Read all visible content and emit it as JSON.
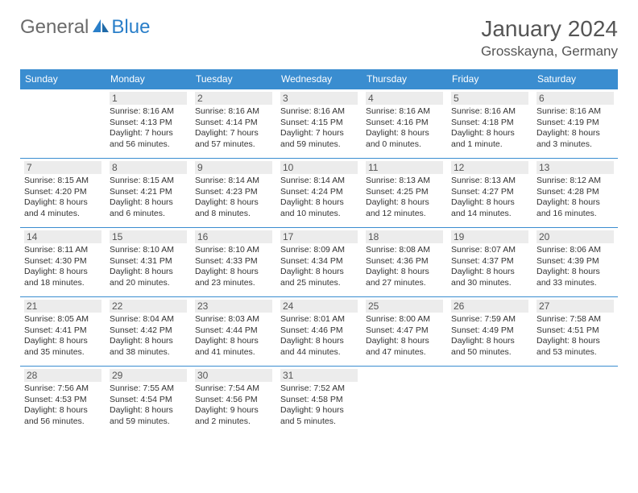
{
  "logo": {
    "general": "General",
    "blue": "Blue"
  },
  "title": "January 2024",
  "location": "Grosskayna, Germany",
  "colors": {
    "header_bg": "#3a8dd0",
    "header_fg": "#ffffff",
    "daynum_bg": "#ececec",
    "border": "#3a8dd0",
    "logo_gray": "#6b6b6b",
    "logo_blue": "#2a7fc9"
  },
  "day_headers": [
    "Sunday",
    "Monday",
    "Tuesday",
    "Wednesday",
    "Thursday",
    "Friday",
    "Saturday"
  ],
  "weeks": [
    [
      null,
      {
        "n": "1",
        "sr": "Sunrise: 8:16 AM",
        "ss": "Sunset: 4:13 PM",
        "d1": "Daylight: 7 hours",
        "d2": "and 56 minutes."
      },
      {
        "n": "2",
        "sr": "Sunrise: 8:16 AM",
        "ss": "Sunset: 4:14 PM",
        "d1": "Daylight: 7 hours",
        "d2": "and 57 minutes."
      },
      {
        "n": "3",
        "sr": "Sunrise: 8:16 AM",
        "ss": "Sunset: 4:15 PM",
        "d1": "Daylight: 7 hours",
        "d2": "and 59 minutes."
      },
      {
        "n": "4",
        "sr": "Sunrise: 8:16 AM",
        "ss": "Sunset: 4:16 PM",
        "d1": "Daylight: 8 hours",
        "d2": "and 0 minutes."
      },
      {
        "n": "5",
        "sr": "Sunrise: 8:16 AM",
        "ss": "Sunset: 4:18 PM",
        "d1": "Daylight: 8 hours",
        "d2": "and 1 minute."
      },
      {
        "n": "6",
        "sr": "Sunrise: 8:16 AM",
        "ss": "Sunset: 4:19 PM",
        "d1": "Daylight: 8 hours",
        "d2": "and 3 minutes."
      }
    ],
    [
      {
        "n": "7",
        "sr": "Sunrise: 8:15 AM",
        "ss": "Sunset: 4:20 PM",
        "d1": "Daylight: 8 hours",
        "d2": "and 4 minutes."
      },
      {
        "n": "8",
        "sr": "Sunrise: 8:15 AM",
        "ss": "Sunset: 4:21 PM",
        "d1": "Daylight: 8 hours",
        "d2": "and 6 minutes."
      },
      {
        "n": "9",
        "sr": "Sunrise: 8:14 AM",
        "ss": "Sunset: 4:23 PM",
        "d1": "Daylight: 8 hours",
        "d2": "and 8 minutes."
      },
      {
        "n": "10",
        "sr": "Sunrise: 8:14 AM",
        "ss": "Sunset: 4:24 PM",
        "d1": "Daylight: 8 hours",
        "d2": "and 10 minutes."
      },
      {
        "n": "11",
        "sr": "Sunrise: 8:13 AM",
        "ss": "Sunset: 4:25 PM",
        "d1": "Daylight: 8 hours",
        "d2": "and 12 minutes."
      },
      {
        "n": "12",
        "sr": "Sunrise: 8:13 AM",
        "ss": "Sunset: 4:27 PM",
        "d1": "Daylight: 8 hours",
        "d2": "and 14 minutes."
      },
      {
        "n": "13",
        "sr": "Sunrise: 8:12 AM",
        "ss": "Sunset: 4:28 PM",
        "d1": "Daylight: 8 hours",
        "d2": "and 16 minutes."
      }
    ],
    [
      {
        "n": "14",
        "sr": "Sunrise: 8:11 AM",
        "ss": "Sunset: 4:30 PM",
        "d1": "Daylight: 8 hours",
        "d2": "and 18 minutes."
      },
      {
        "n": "15",
        "sr": "Sunrise: 8:10 AM",
        "ss": "Sunset: 4:31 PM",
        "d1": "Daylight: 8 hours",
        "d2": "and 20 minutes."
      },
      {
        "n": "16",
        "sr": "Sunrise: 8:10 AM",
        "ss": "Sunset: 4:33 PM",
        "d1": "Daylight: 8 hours",
        "d2": "and 23 minutes."
      },
      {
        "n": "17",
        "sr": "Sunrise: 8:09 AM",
        "ss": "Sunset: 4:34 PM",
        "d1": "Daylight: 8 hours",
        "d2": "and 25 minutes."
      },
      {
        "n": "18",
        "sr": "Sunrise: 8:08 AM",
        "ss": "Sunset: 4:36 PM",
        "d1": "Daylight: 8 hours",
        "d2": "and 27 minutes."
      },
      {
        "n": "19",
        "sr": "Sunrise: 8:07 AM",
        "ss": "Sunset: 4:37 PM",
        "d1": "Daylight: 8 hours",
        "d2": "and 30 minutes."
      },
      {
        "n": "20",
        "sr": "Sunrise: 8:06 AM",
        "ss": "Sunset: 4:39 PM",
        "d1": "Daylight: 8 hours",
        "d2": "and 33 minutes."
      }
    ],
    [
      {
        "n": "21",
        "sr": "Sunrise: 8:05 AM",
        "ss": "Sunset: 4:41 PM",
        "d1": "Daylight: 8 hours",
        "d2": "and 35 minutes."
      },
      {
        "n": "22",
        "sr": "Sunrise: 8:04 AM",
        "ss": "Sunset: 4:42 PM",
        "d1": "Daylight: 8 hours",
        "d2": "and 38 minutes."
      },
      {
        "n": "23",
        "sr": "Sunrise: 8:03 AM",
        "ss": "Sunset: 4:44 PM",
        "d1": "Daylight: 8 hours",
        "d2": "and 41 minutes."
      },
      {
        "n": "24",
        "sr": "Sunrise: 8:01 AM",
        "ss": "Sunset: 4:46 PM",
        "d1": "Daylight: 8 hours",
        "d2": "and 44 minutes."
      },
      {
        "n": "25",
        "sr": "Sunrise: 8:00 AM",
        "ss": "Sunset: 4:47 PM",
        "d1": "Daylight: 8 hours",
        "d2": "and 47 minutes."
      },
      {
        "n": "26",
        "sr": "Sunrise: 7:59 AM",
        "ss": "Sunset: 4:49 PM",
        "d1": "Daylight: 8 hours",
        "d2": "and 50 minutes."
      },
      {
        "n": "27",
        "sr": "Sunrise: 7:58 AM",
        "ss": "Sunset: 4:51 PM",
        "d1": "Daylight: 8 hours",
        "d2": "and 53 minutes."
      }
    ],
    [
      {
        "n": "28",
        "sr": "Sunrise: 7:56 AM",
        "ss": "Sunset: 4:53 PM",
        "d1": "Daylight: 8 hours",
        "d2": "and 56 minutes."
      },
      {
        "n": "29",
        "sr": "Sunrise: 7:55 AM",
        "ss": "Sunset: 4:54 PM",
        "d1": "Daylight: 8 hours",
        "d2": "and 59 minutes."
      },
      {
        "n": "30",
        "sr": "Sunrise: 7:54 AM",
        "ss": "Sunset: 4:56 PM",
        "d1": "Daylight: 9 hours",
        "d2": "and 2 minutes."
      },
      {
        "n": "31",
        "sr": "Sunrise: 7:52 AM",
        "ss": "Sunset: 4:58 PM",
        "d1": "Daylight: 9 hours",
        "d2": "and 5 minutes."
      },
      null,
      null,
      null
    ]
  ]
}
